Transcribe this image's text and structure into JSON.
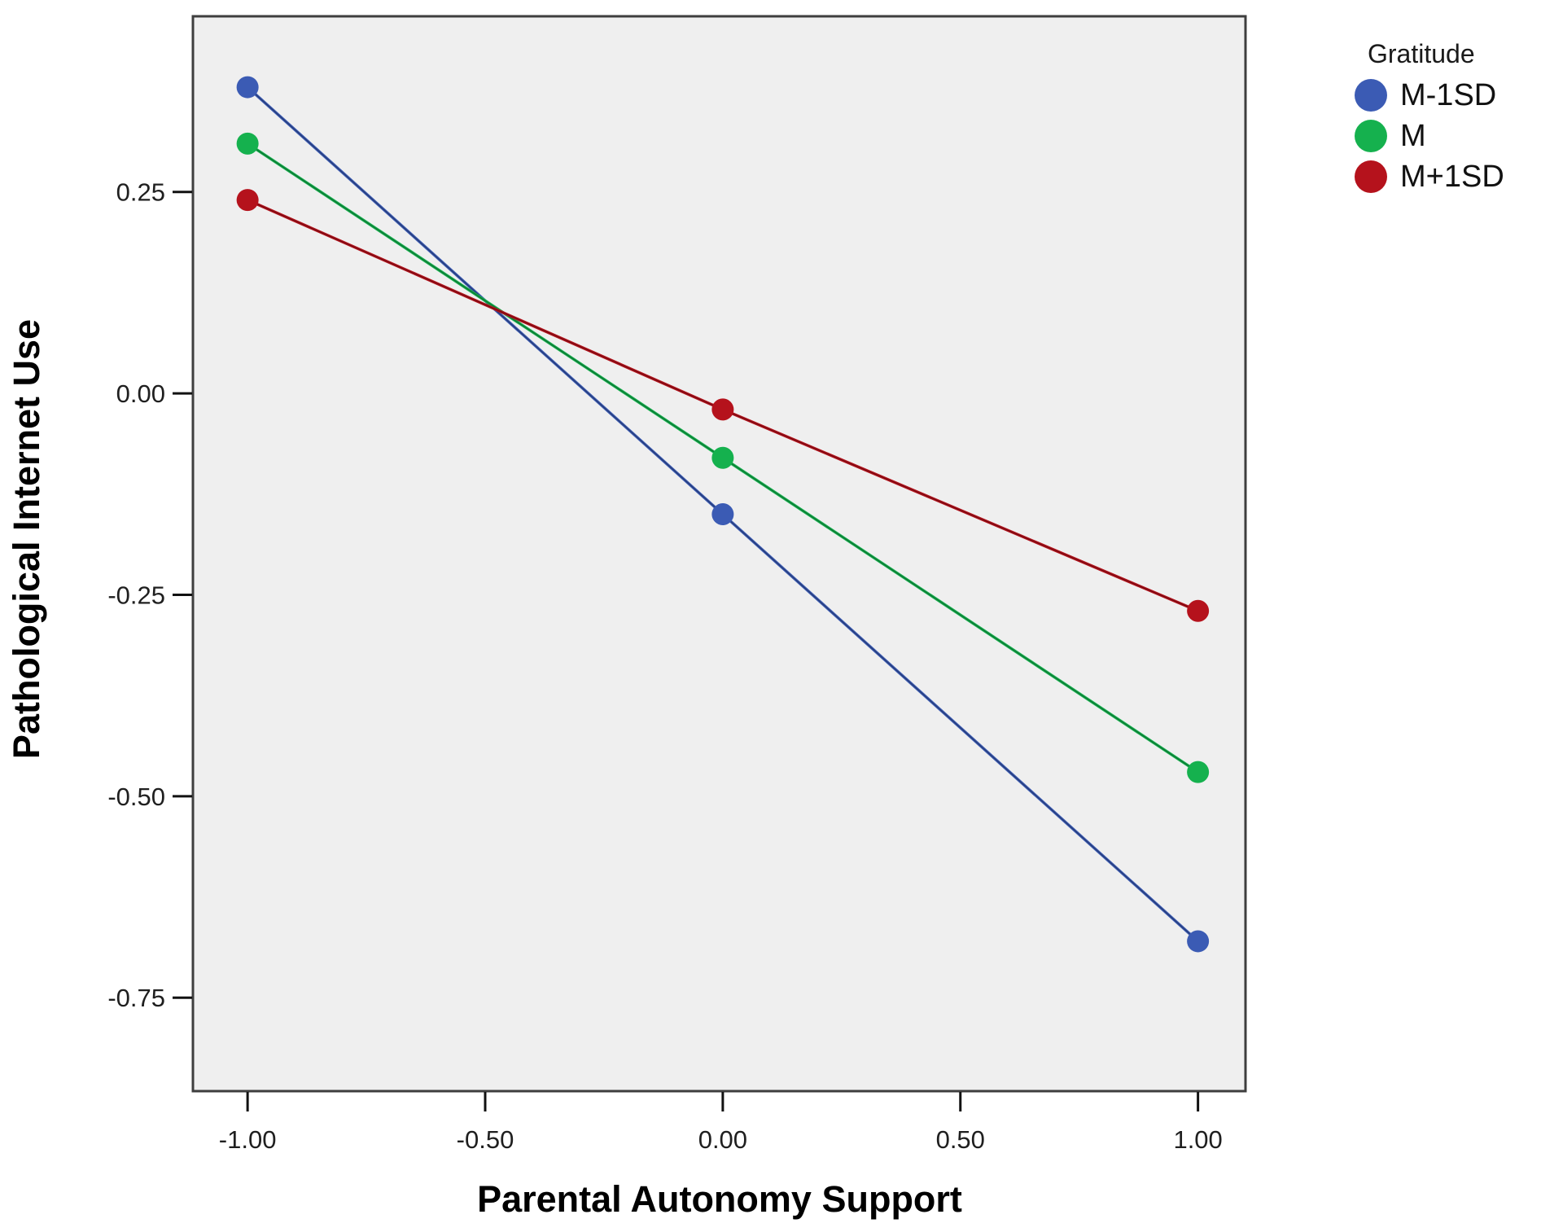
{
  "chart_data": {
    "type": "line",
    "title": "",
    "xlabel": "Parental Autonomy Support",
    "ylabel": "Pathological Internet Use",
    "legend_title": "Gratitude",
    "legend_position": "outside-top-right",
    "grid": false,
    "plot_bg": "#EFEFEF",
    "frame_color": "#3E3E3E",
    "tick_color": "#111111",
    "x": [
      -1.0,
      0.0,
      1.0
    ],
    "xlim": [
      -1.115,
      1.1
    ],
    "ylim": [
      -0.866,
      0.468
    ],
    "x_ticks": [
      -1.0,
      -0.5,
      0.0,
      0.5,
      1.0
    ],
    "x_tick_labels": [
      "-1.00",
      "-0.50",
      "0.00",
      "0.50",
      "1.00"
    ],
    "y_ticks": [
      0.25,
      0.0,
      -0.25,
      -0.5,
      -0.75
    ],
    "y_tick_labels": [
      "0.25",
      "0.00",
      "-0.25",
      "-0.50",
      "-0.75"
    ],
    "series": [
      {
        "name": "M-1SD",
        "color": "#3B5BB4",
        "values": [
          0.38,
          -0.15,
          -0.68
        ]
      },
      {
        "name": "M",
        "color": "#15B14E",
        "values": [
          0.31,
          -0.08,
          -0.47
        ]
      },
      {
        "name": "M+1SD",
        "color": "#B5121C",
        "values": [
          0.24,
          -0.02,
          -0.27
        ]
      }
    ]
  }
}
